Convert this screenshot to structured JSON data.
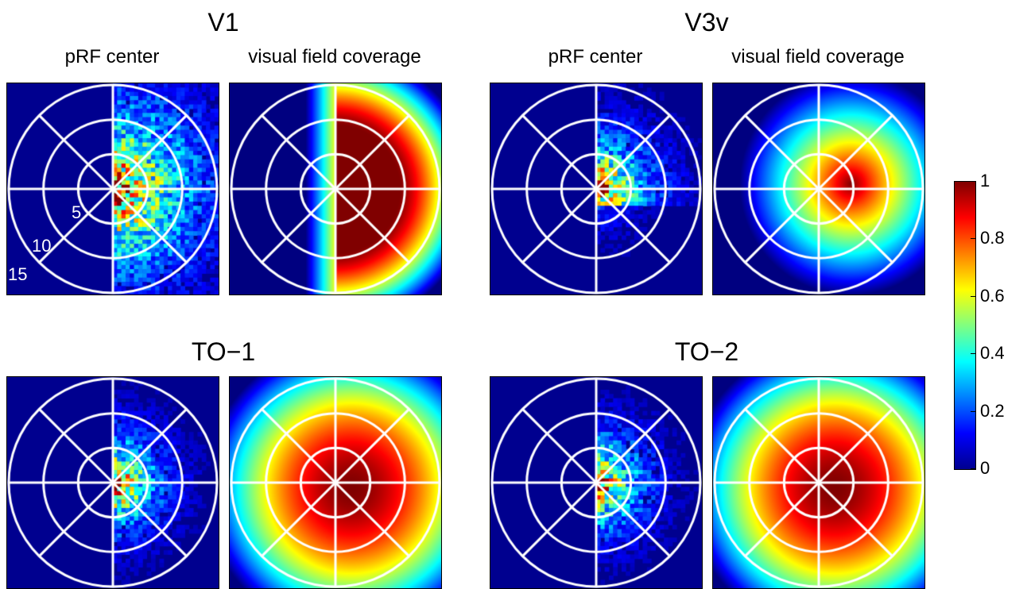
{
  "rows": [
    {
      "regions": [
        {
          "title": "V1",
          "panels": [
            {
              "label": "pRF center",
              "kind": "center"
            },
            {
              "label": "visual field coverage",
              "kind": "coverage"
            }
          ],
          "profile": {
            "mode": "hemifield",
            "spread": 0.55
          },
          "polar_labels": [
            "5",
            "10",
            "15"
          ]
        },
        {
          "title": "V3v",
          "panels": [
            {
              "label": "pRF center",
              "kind": "center"
            },
            {
              "label": "visual field coverage",
              "kind": "coverage"
            }
          ],
          "profile": {
            "mode": "quadrant",
            "spread": 0.35
          }
        }
      ]
    },
    {
      "regions": [
        {
          "title": "TO−1",
          "panels": [
            {
              "label": "",
              "kind": "center"
            },
            {
              "label": "",
              "kind": "coverage"
            }
          ],
          "profile": {
            "mode": "wide",
            "spread": 0.3
          }
        },
        {
          "title": "TO−2",
          "panels": [
            {
              "label": "",
              "kind": "center"
            },
            {
              "label": "",
              "kind": "coverage"
            }
          ],
          "profile": {
            "mode": "wide2",
            "spread": 0.3
          }
        }
      ]
    }
  ],
  "colorbar": {
    "ticks": [
      "1",
      "0.8",
      "0.6",
      "0.4",
      "0.2",
      "0"
    ],
    "colormap": "jet",
    "range": [
      0,
      1
    ]
  },
  "chart_data": {
    "type": "heatmap",
    "polar_grid": {
      "eccentricities_deg": [
        5,
        10,
        15
      ],
      "angles_deg": [
        0,
        45,
        90,
        135,
        180,
        225,
        270,
        315
      ]
    },
    "value_range": [
      0,
      1
    ],
    "colors": {
      "grid": "#ffffff",
      "background": "#00008f"
    }
  }
}
